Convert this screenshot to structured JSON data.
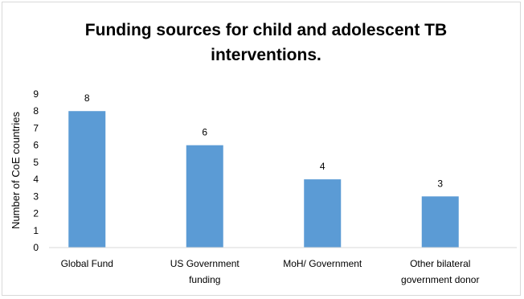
{
  "chart_data": {
    "type": "bar",
    "title_lines": [
      "Funding sources for child and adolescent TB",
      "interventions."
    ],
    "ylabel": "Number of CoE countries",
    "xlabel": "",
    "categories": [
      [
        "Global Fund"
      ],
      [
        "US Government",
        "funding"
      ],
      [
        "MoH/ Government"
      ],
      [
        "Other bilateral",
        "government donor"
      ]
    ],
    "values": [
      8,
      6,
      4,
      3
    ],
    "data_labels": [
      "8",
      "6",
      "4",
      "3"
    ],
    "ylim": [
      0,
      9
    ],
    "yticks": [
      "0",
      "1",
      "2",
      "3",
      "4",
      "5",
      "6",
      "7",
      "8",
      "9"
    ],
    "grid": false,
    "legend": "none",
    "bar_color": "#5b9bd5"
  }
}
